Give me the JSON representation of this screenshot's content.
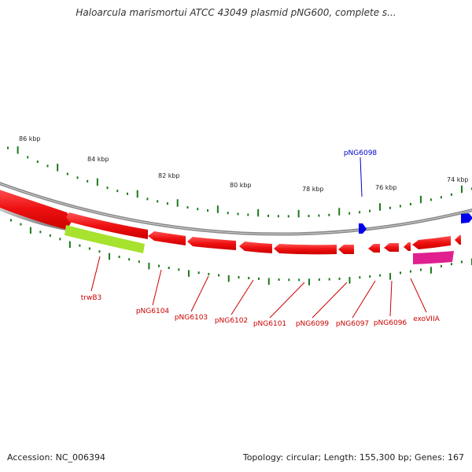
{
  "title": "Haloarcula marismortui ATCC 43049 plasmid pNG600, complete s...",
  "footer": {
    "accession": "Accession: NC_006394",
    "summary": "Topology: circular; Length: 155,300 bp; Genes: 167"
  },
  "colors": {
    "forward_gene": "#0000ee",
    "reverse_gene": "#ee1111",
    "trwB3_feature": "#a6e22e",
    "exoVIIA_feature": "#e0208e",
    "backbone": "#888888",
    "tick": "#1a7a1a",
    "gene_label_reverse": "#cc0000",
    "gene_label_forward": "#0000cc"
  },
  "scale_labels": [
    "86 kbp",
    "84 kbp",
    "82 kbp",
    "80 kbp",
    "78 kbp",
    "76 kbp",
    "74 kbp"
  ],
  "gene_labels": [
    {
      "name": "trwB3",
      "strand": "reverse"
    },
    {
      "name": "pNG6104",
      "strand": "reverse"
    },
    {
      "name": "pNG6103",
      "strand": "reverse"
    },
    {
      "name": "pNG6102",
      "strand": "reverse"
    },
    {
      "name": "pNG6101",
      "strand": "reverse"
    },
    {
      "name": "pNG6099",
      "strand": "reverse"
    },
    {
      "name": "pNG6097",
      "strand": "reverse"
    },
    {
      "name": "pNG6096",
      "strand": "reverse"
    },
    {
      "name": "exoVIIA",
      "strand": "reverse"
    },
    {
      "name": "pNG6098",
      "strand": "forward"
    }
  ]
}
